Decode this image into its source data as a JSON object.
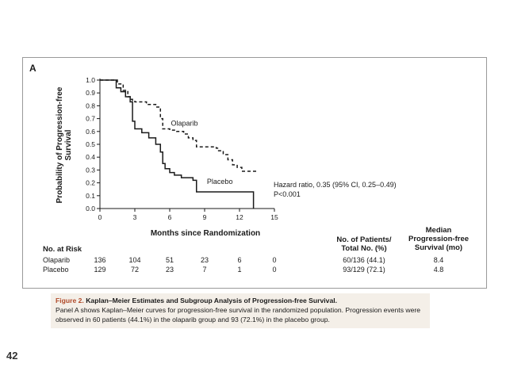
{
  "figure": {
    "panel_label": "A",
    "hazard_ratio_line1": "Hazard ratio, 0.35 (95% CI, 0.25–0.49)",
    "hazard_ratio_line2": "P<0.001"
  },
  "chart_data": {
    "type": "line",
    "title": "",
    "xlabel": "Months since Randomization",
    "ylabel": "Probability of Progression-free Survival",
    "xlim": [
      0,
      15
    ],
    "ylim": [
      0,
      1
    ],
    "xticks": [
      "0",
      "3",
      "6",
      "9",
      "12",
      "15"
    ],
    "yticks": [
      "0.0",
      "0.1",
      "0.2",
      "0.3",
      "0.4",
      "0.5",
      "0.6",
      "0.7",
      "0.8",
      "0.9",
      "1.0"
    ],
    "grid": false,
    "series": [
      {
        "name": "Olaparib",
        "style": "dashed",
        "color": "#1a1a1a",
        "x": [
          0,
          1.0,
          1.5,
          2.0,
          2.4,
          2.6,
          2.8,
          3.0,
          4.0,
          4.8,
          5.2,
          5.4,
          6.0,
          6.6,
          7.2,
          7.6,
          8.0,
          8.3,
          10.0,
          10.2,
          10.6,
          11.0,
          11.4,
          11.8,
          12.2,
          13.6
        ],
        "y": [
          1.0,
          1.0,
          0.97,
          0.92,
          0.87,
          0.85,
          0.84,
          0.83,
          0.81,
          0.79,
          0.7,
          0.62,
          0.61,
          0.6,
          0.58,
          0.55,
          0.53,
          0.48,
          0.47,
          0.45,
          0.42,
          0.38,
          0.34,
          0.32,
          0.29,
          0.29
        ]
      },
      {
        "name": "Placebo",
        "style": "solid",
        "color": "#1a1a1a",
        "x": [
          0,
          1.0,
          1.4,
          1.8,
          2.2,
          2.6,
          2.8,
          3.0,
          3.6,
          4.2,
          4.8,
          5.2,
          5.4,
          5.6,
          6.0,
          6.4,
          7.0,
          8.0,
          8.3,
          11.0,
          13.2,
          13.2
        ],
        "y": [
          1.0,
          1.0,
          0.94,
          0.91,
          0.87,
          0.83,
          0.68,
          0.62,
          0.59,
          0.55,
          0.5,
          0.44,
          0.35,
          0.31,
          0.28,
          0.26,
          0.24,
          0.22,
          0.13,
          0.13,
          0.13,
          0.0
        ]
      }
    ],
    "annotations": [
      "Olaparib",
      "Placebo"
    ]
  },
  "risk_table": {
    "header": "No. at Risk",
    "rows": [
      {
        "name": "Olaparib",
        "values": [
          "136",
          "104",
          "51",
          "23",
          "6",
          "0"
        ]
      },
      {
        "name": "Placebo",
        "values": [
          "129",
          "72",
          "23",
          "7",
          "1",
          "0"
        ]
      }
    ]
  },
  "summary_table": {
    "col1_header_line1": "No. of Patients/",
    "col1_header_line2": "Total No. (%)",
    "col2_header_line1": "Median",
    "col2_header_line2": "Progression-free",
    "col2_header_line3": "Survival (mo)",
    "rows": [
      {
        "patients": "60/136 (44.1)",
        "median": "8.4"
      },
      {
        "patients": "93/129 (72.1)",
        "median": "4.8"
      }
    ]
  },
  "caption": {
    "title": "Figure 2.",
    "subtitle": "Kaplan–Meier Estimates and Subgroup Analysis of Progression-free Survival.",
    "body": "Panel A shows Kaplan–Meier curves for progression-free survival in the randomized population. Progression events were observed in 60 patients (44.1%) in the olaparib group and 93 (72.1%) in the placebo group."
  },
  "page_number": "42"
}
